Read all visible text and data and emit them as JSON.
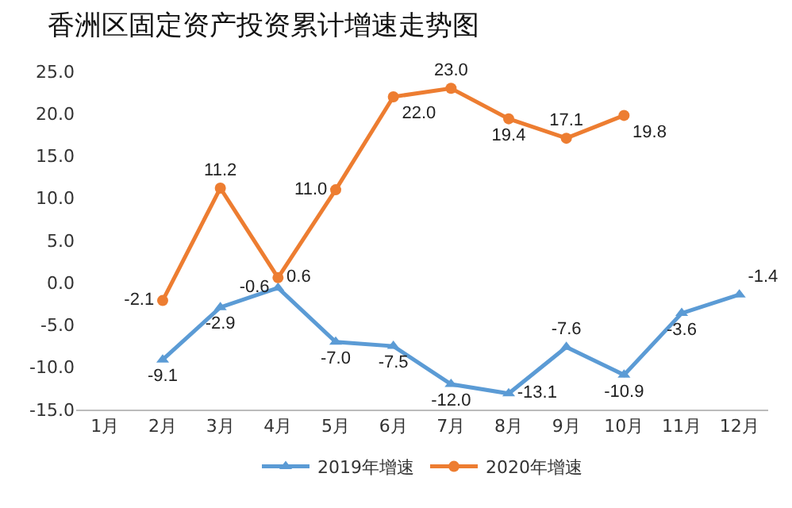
{
  "chart_data": {
    "type": "line",
    "title": "香洲区固定资产投资累计增速走势图",
    "categories": [
      "1月",
      "2月",
      "3月",
      "4月",
      "5月",
      "6月",
      "7月",
      "8月",
      "9月",
      "10月",
      "11月",
      "12月"
    ],
    "series": [
      {
        "name": "2019年增速",
        "color": "#5b9bd5",
        "marker": "triangle",
        "values": [
          null,
          -9.1,
          -2.9,
          -0.6,
          -7.0,
          -7.5,
          -12.0,
          -13.1,
          -7.6,
          -10.9,
          -3.6,
          -1.4
        ],
        "value_labels": [
          null,
          "-9.1",
          "-2.9",
          "-0.6",
          "-7.0",
          "-7.5",
          "-12.0",
          "-13.1",
          "-7.6",
          "-10.9",
          "-3.6",
          "-1.4"
        ]
      },
      {
        "name": "2020年增速",
        "color": "#ed7d31",
        "marker": "circle",
        "values": [
          null,
          -2.1,
          11.2,
          0.6,
          11.0,
          22.0,
          23.0,
          19.4,
          17.1,
          19.8,
          null,
          null
        ],
        "value_labels": [
          null,
          "-2.1",
          "11.2",
          "0.6",
          "11.0",
          "22.0",
          "23.0",
          "19.4",
          "17.1",
          "19.8",
          null,
          null
        ]
      }
    ],
    "ylim": [
      -15,
      25
    ],
    "yticks": [
      {
        "value": -15,
        "label": "-15.0"
      },
      {
        "value": -10,
        "label": "-10.0"
      },
      {
        "value": -5,
        "label": "-5.0"
      },
      {
        "value": 0,
        "label": "0.0"
      },
      {
        "value": 5,
        "label": "5.0"
      },
      {
        "value": 10,
        "label": "10.0"
      },
      {
        "value": 15,
        "label": "15.0"
      },
      {
        "value": 20,
        "label": "20.0"
      },
      {
        "value": 25,
        "label": "25.0"
      }
    ],
    "grid": false,
    "legend": "bottom",
    "line_style": "solid"
  }
}
